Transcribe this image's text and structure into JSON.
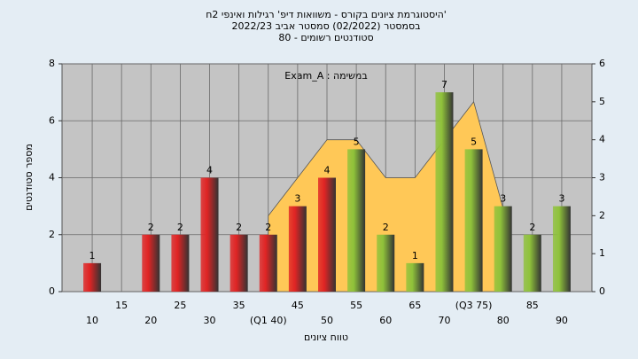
{
  "chart_data": {
    "type": "bar",
    "title": [
      "'היסטוגרמת ציונים בקורס - משוואות דיפ' רגילות ואינפי 2ח",
      "בסמסטר  (02/2022)  סמסטר אביב 2022/23",
      "סטודנטים רשומים - 80"
    ],
    "annotation": "במשימה : Exam_A",
    "xlabel": "טווח ציונים",
    "ylabel": "מספר סטודנטים",
    "categories": [
      "10",
      "15",
      "20",
      "25",
      "30",
      "35",
      "(Q1 40)",
      "45",
      "50",
      "55",
      "60",
      "65",
      "70",
      "(Q3 75)",
      "80",
      "85",
      "90"
    ],
    "values": [
      1,
      0,
      2,
      2,
      4,
      2,
      2,
      3,
      4,
      5,
      2,
      1,
      7,
      5,
      3,
      2,
      3
    ],
    "colors": [
      "#e02424",
      "#e02424",
      "#e02424",
      "#e02424",
      "#e02424",
      "#e02424",
      "#e02424",
      "#e02424",
      "#e02424",
      "#8fc23a",
      "#8fc23a",
      "#8fc23a",
      "#8fc23a",
      "#8fc23a",
      "#8fc23a",
      "#8fc23a",
      "#8fc23a"
    ],
    "area": {
      "color": "#ffc857",
      "axis": "y2",
      "values": [
        null,
        null,
        null,
        null,
        null,
        null,
        2,
        3,
        4,
        4,
        3,
        3,
        4,
        5,
        2.2,
        null,
        null
      ]
    },
    "ylim": [
      0,
      8
    ],
    "yticks": [
      0,
      2,
      4,
      6,
      8
    ],
    "y2lim": [
      0,
      6
    ],
    "y2ticks": [
      0,
      1,
      2,
      3,
      4,
      5,
      6
    ],
    "grid": true
  }
}
